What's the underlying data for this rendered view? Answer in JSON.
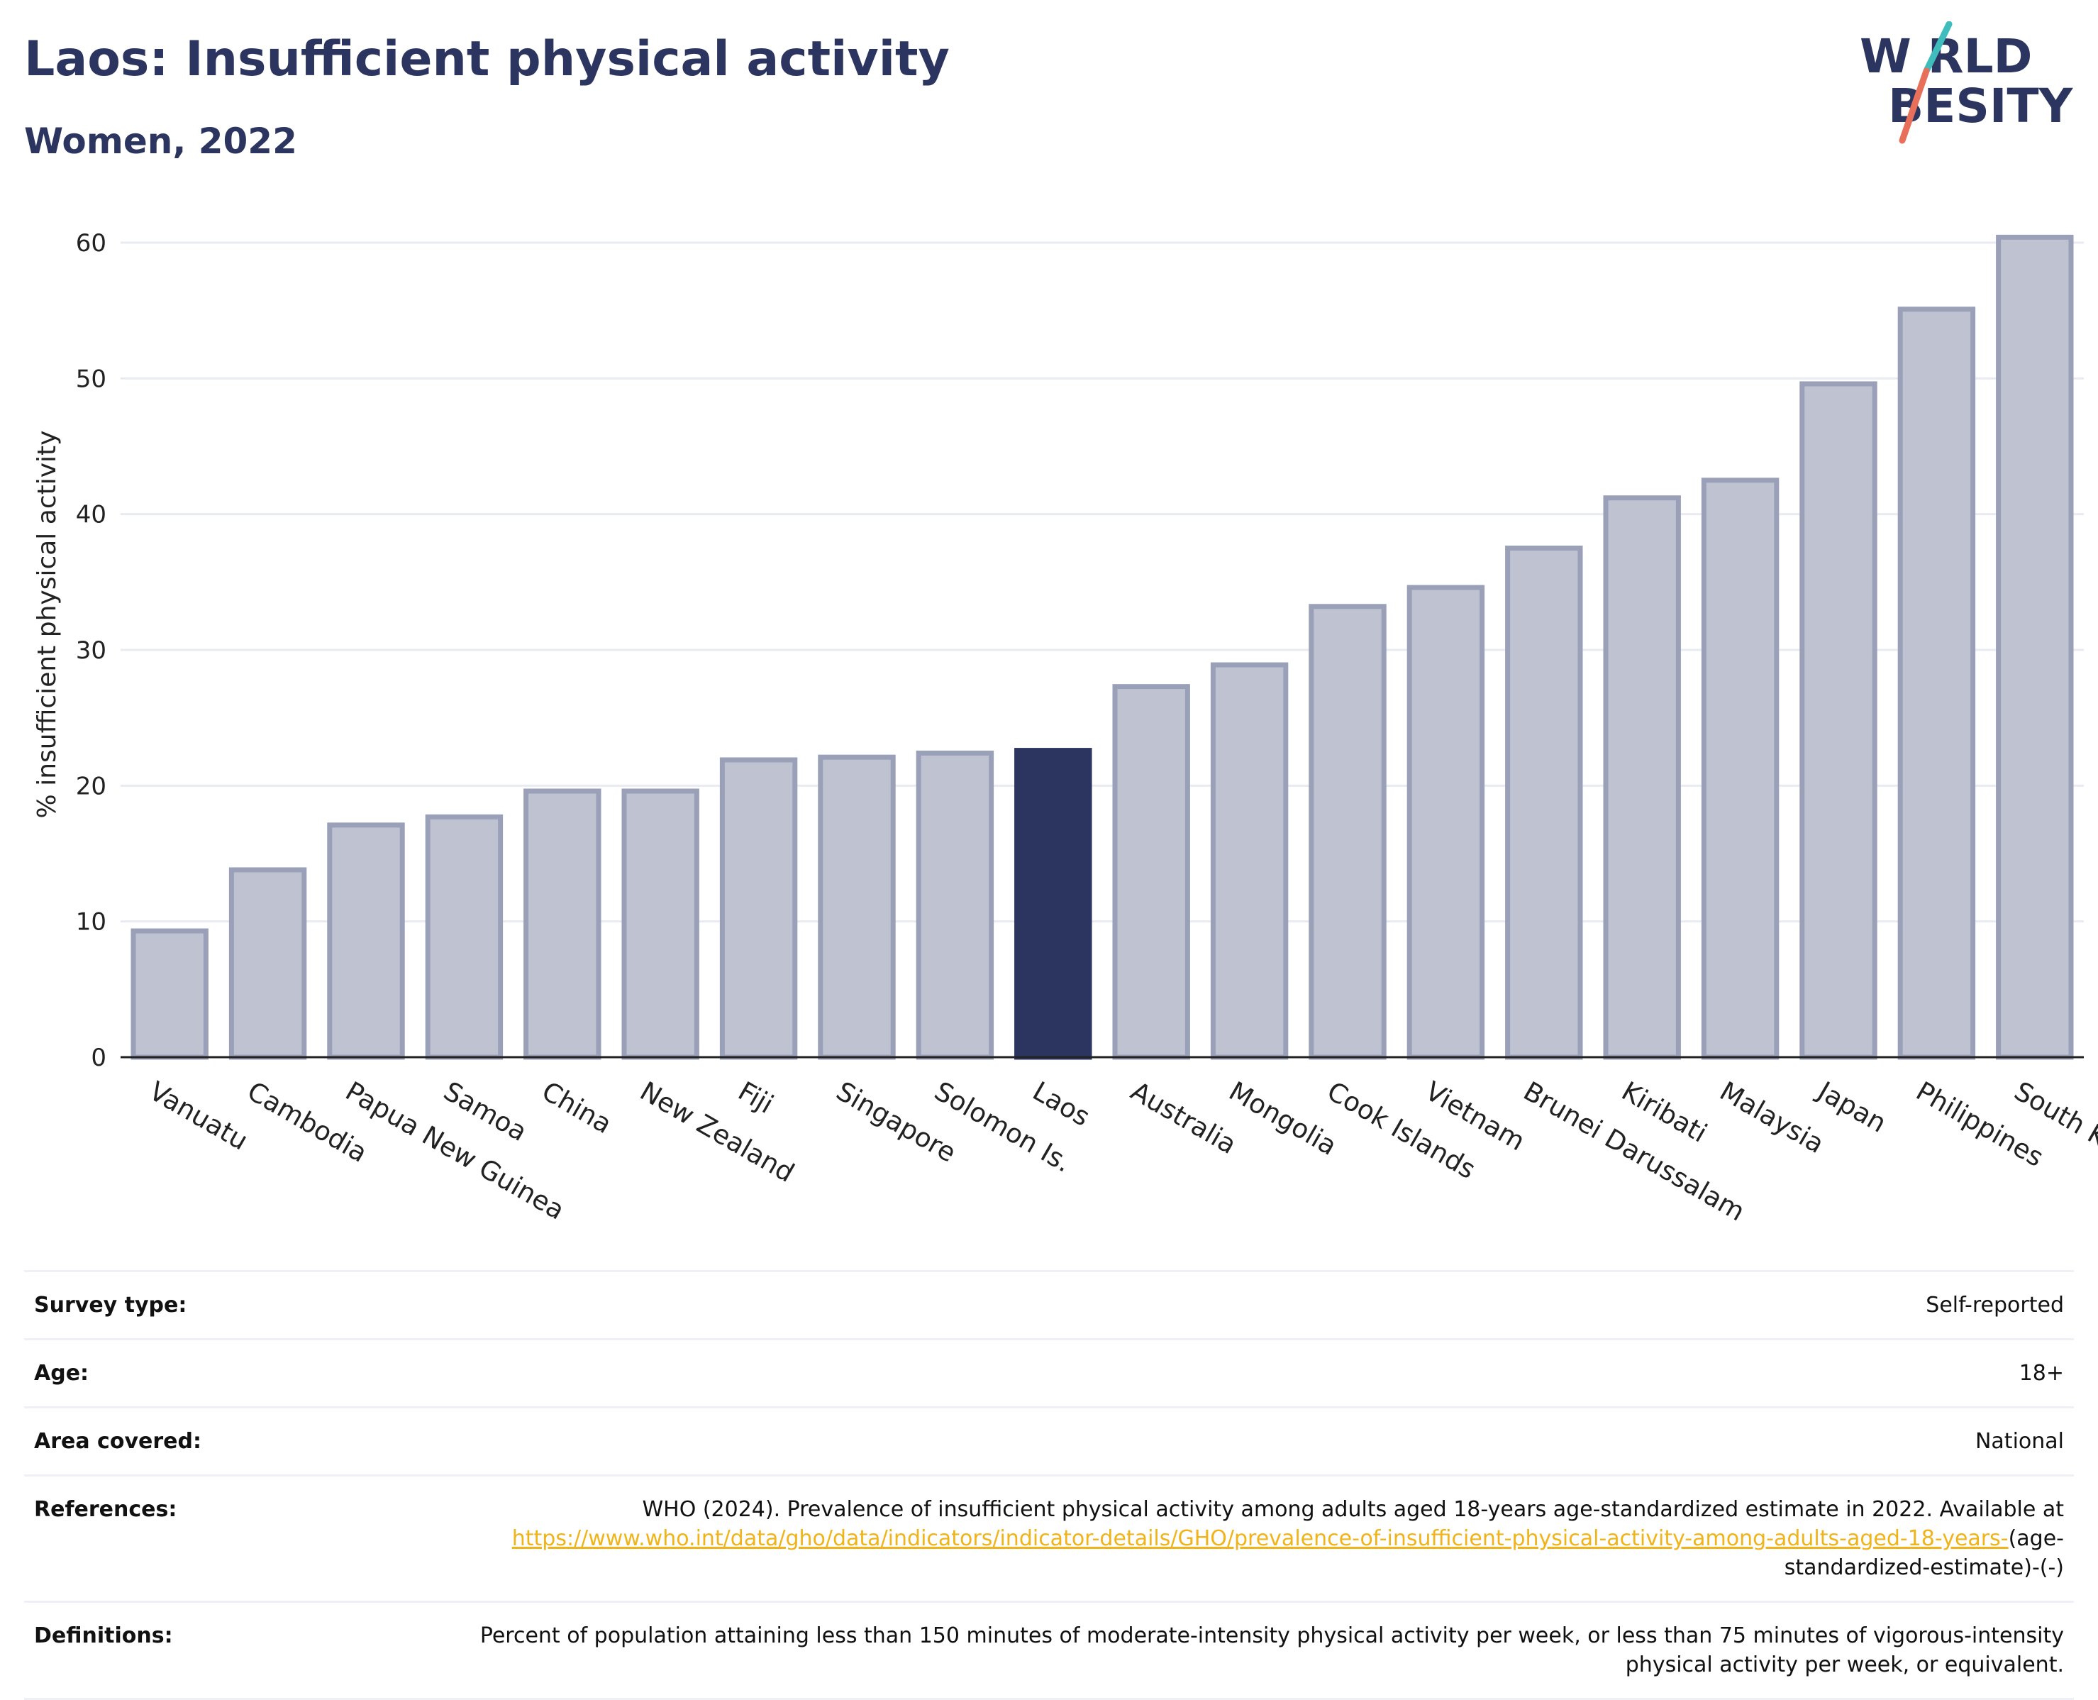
{
  "header": {
    "title": "Laos: Insufficient physical activity",
    "subtitle": "Women, 2022"
  },
  "logo": {
    "line1": "W RLD",
    "line2": "BESITY",
    "colors": {
      "navy": "#2b3560",
      "teal": "#3fbcbc",
      "coral": "#e8705a"
    }
  },
  "colors": {
    "bar_default": "#bec2d1",
    "bar_default_stroke": "#9aa0b8",
    "bar_highlight": "#2b3560",
    "gridline": "#e9ebf2",
    "axis": "#222222"
  },
  "chart_data": {
    "type": "bar",
    "ylabel": "% insufficient physical activity",
    "ylim": [
      0,
      63
    ],
    "yticks": [
      0,
      10,
      20,
      30,
      40,
      50,
      60
    ],
    "grid": true,
    "categories": [
      "Vanuatu",
      "Cambodia",
      "Papua New Guinea",
      "Samoa",
      "China",
      "New Zealand",
      "Fiji",
      "Singapore",
      "Solomon Is.",
      "Laos",
      "Australia",
      "Mongolia",
      "Cook Islands",
      "Vietnam",
      "Brunei Darussalam",
      "Kiribati",
      "Malaysia",
      "Japan",
      "Philippines",
      "South Korea"
    ],
    "values": [
      9.3,
      13.8,
      17.1,
      17.7,
      19.6,
      19.6,
      21.9,
      22.1,
      22.4,
      22.6,
      27.3,
      28.9,
      33.2,
      34.6,
      37.5,
      41.2,
      42.5,
      49.6,
      55.1,
      60.4
    ],
    "highlight": "Laos"
  },
  "table": {
    "rows": [
      {
        "label": "Survey type:",
        "value": "Self-reported"
      },
      {
        "label": "Age:",
        "value": "18+"
      },
      {
        "label": "Area covered:",
        "value": "National"
      },
      {
        "label": "References:",
        "value_pre": "WHO (2024). Prevalence of insufficient physical activity among adults aged 18-years age-standardized estimate in 2022. Available at",
        "link": "https://www.who.int/data/gho/data/indicators/indicator-details/GHO/prevalence-of-insufficient-physical-activity-among-adults-aged-18-years-",
        "value_post": "(age-standardized-estimate)-(-)"
      },
      {
        "label": "Definitions:",
        "value": "Percent of population attaining less than 150 minutes of moderate-intensity physical activity per week, or less than 75 minutes of vigorous-intensity physical activity per week, or equivalent."
      }
    ]
  }
}
